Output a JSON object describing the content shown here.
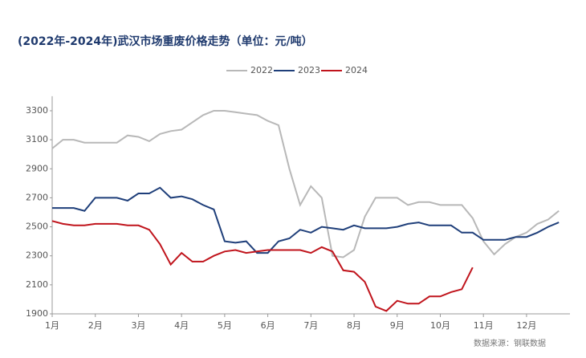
{
  "chart_data": {
    "type": "line",
    "title": "(2022年-2024年)武汉市场重废价格走势（单位：元/吨）",
    "source": "数据来源：钢联数据",
    "categories": [
      "1月",
      null,
      null,
      null,
      "2月",
      null,
      null,
      null,
      "3月",
      null,
      null,
      null,
      "4月",
      null,
      null,
      null,
      "5月",
      null,
      null,
      null,
      "6月",
      null,
      null,
      null,
      "7月",
      null,
      null,
      null,
      "8月",
      null,
      null,
      null,
      "9月",
      null,
      null,
      null,
      "10月",
      null,
      null,
      null,
      "11月",
      null,
      null,
      null,
      "12月",
      null,
      null,
      null
    ],
    "series": [
      {
        "name": "2022",
        "color": "#b8b8b8",
        "values": [
          3040,
          3100,
          3100,
          3080,
          3080,
          3080,
          3080,
          3130,
          3120,
          3090,
          3140,
          3160,
          3170,
          3220,
          3270,
          3300,
          3300,
          3290,
          3280,
          3270,
          3230,
          3200,
          2900,
          2650,
          2780,
          2700,
          2300,
          2290,
          2340,
          2570,
          2700,
          2700,
          2700,
          2650,
          2670,
          2670,
          2650,
          2650,
          2650,
          2560,
          2400,
          2310,
          2380,
          2430,
          2460,
          2520,
          2550,
          2610
        ]
      },
      {
        "name": "2023",
        "color": "#1f3f7a",
        "values": [
          2630,
          2630,
          2630,
          2610,
          2700,
          2700,
          2700,
          2680,
          2730,
          2730,
          2770,
          2700,
          2710,
          2690,
          2650,
          2620,
          2400,
          2390,
          2400,
          2320,
          2320,
          2400,
          2420,
          2480,
          2460,
          2500,
          2490,
          2480,
          2510,
          2490,
          2490,
          2490,
          2500,
          2520,
          2530,
          2510,
          2510,
          2510,
          2460,
          2460,
          2410,
          2410,
          2410,
          2430,
          2430,
          2460,
          2500,
          2530
        ]
      },
      {
        "name": "2024",
        "color": "#c0141c",
        "values": [
          2540,
          2520,
          2510,
          2510,
          2520,
          2520,
          2520,
          2510,
          2510,
          2480,
          2380,
          2240,
          2320,
          2260,
          2260,
          2300,
          2330,
          2340,
          2320,
          2330,
          2340,
          2340,
          2340,
          2340,
          2320,
          2360,
          2330,
          2200,
          2190,
          2120,
          1950,
          1920,
          1990,
          1970,
          1970,
          2020,
          2020,
          2050,
          2070,
          2220,
          null,
          null,
          null,
          null,
          null,
          null,
          null,
          null
        ]
      }
    ],
    "ylim": [
      1900,
      3400
    ],
    "yticks": [
      1900,
      2100,
      2300,
      2500,
      2700,
      2900,
      3100,
      3300
    ]
  }
}
